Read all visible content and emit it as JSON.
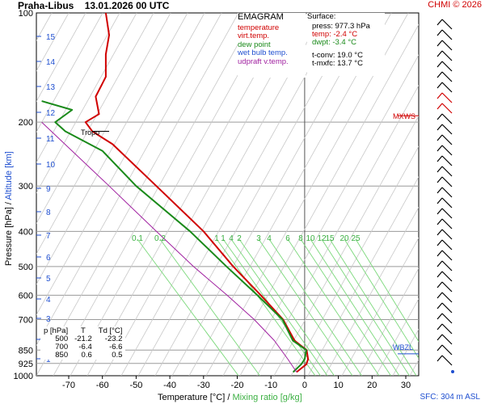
{
  "header": {
    "station": "Praha-Libus",
    "datetime": "13.01.2026 00 UTC",
    "copyright": "CHMI © 2026"
  },
  "legend": {
    "title": "EMAGRAM",
    "items": [
      {
        "label": "temperature",
        "color": "#d00000"
      },
      {
        "label": "virt.temp.",
        "color": "#d00000"
      },
      {
        "label": "dew point",
        "color": "#1a8a1a"
      },
      {
        "label": "wet bulb temp.",
        "color": "#1f4fd0"
      },
      {
        "label": "udpraft v.temp.",
        "color": "#a020a0"
      }
    ]
  },
  "surface": {
    "title": "Surface:",
    "press": "press: 977.3 hPa",
    "temp": "temp: -2.4 °C",
    "dwpt": "dwpt: -3.4 °C",
    "tconv": "t-conv: 19.0 °C",
    "tmxfc": "t-mxfc: 13.7 °C"
  },
  "table": {
    "headers": [
      "p [hPa]",
      "T",
      "Td [°C]"
    ],
    "rows": [
      [
        "500",
        "-21.2",
        "-23.2"
      ],
      [
        "700",
        "-6.4",
        "-6.6"
      ],
      [
        "850",
        "0.6",
        "0.5"
      ]
    ]
  },
  "labels": {
    "tropo": "Tropo",
    "mxws": "MXWS",
    "wbzl": "WBZL",
    "x_label_temp": "Temperature [°C]  /  ",
    "x_label_mix": "Mixing ratio [g/kg]",
    "y_label_press": "Pressure [hPa]  /  ",
    "y_label_alt": "Altitude [km]",
    "sfc": "SFC: 304 m ASL"
  },
  "chart_data": {
    "type": "line",
    "x_ticks": [
      -70,
      -60,
      -50,
      -40,
      -30,
      -20,
      -10,
      0,
      10,
      20,
      30
    ],
    "pressure_ticks": [
      100,
      200,
      300,
      400,
      500,
      600,
      700,
      850,
      925,
      1000
    ],
    "altitude_ticks": [
      1,
      2,
      3,
      4,
      5,
      6,
      7,
      8,
      9,
      10,
      11,
      12,
      13,
      14,
      15
    ],
    "mixing_ratio_labels": [
      "0.1",
      "0.2",
      "1",
      "1",
      "4",
      "2",
      "3",
      "4",
      "6",
      "8",
      "10",
      "12",
      "15",
      "20",
      "25"
    ],
    "xlim": [
      -80,
      30
    ],
    "ylim_hpa": [
      1000,
      100
    ],
    "series": [
      {
        "name": "temperature",
        "color": "#d00000",
        "points": [
          [
            -2.4,
            977
          ],
          [
            0.5,
            930
          ],
          [
            1.0,
            900
          ],
          [
            0.6,
            850
          ],
          [
            -3.0,
            800
          ],
          [
            -6.4,
            700
          ],
          [
            -13,
            600
          ],
          [
            -21.2,
            500
          ],
          [
            -30,
            400
          ],
          [
            -44,
            300
          ],
          [
            -57,
            230
          ],
          [
            -63,
            212
          ],
          [
            -65,
            200
          ],
          [
            -61,
            190
          ],
          [
            -62,
            170
          ],
          [
            -59,
            150
          ],
          [
            -59,
            130
          ],
          [
            -58,
            115
          ],
          [
            -59,
            100
          ]
        ]
      },
      {
        "name": "dew point",
        "color": "#1a8a1a",
        "points": [
          [
            -3.4,
            977
          ],
          [
            -1,
            930
          ],
          [
            0,
            900
          ],
          [
            0.5,
            850
          ],
          [
            -3.5,
            800
          ],
          [
            -6.6,
            700
          ],
          [
            -14,
            600
          ],
          [
            -23.2,
            500
          ],
          [
            -34,
            400
          ],
          [
            -50,
            300
          ],
          [
            -60,
            240
          ],
          [
            -71,
            212
          ],
          [
            -74,
            200
          ],
          [
            -69,
            185
          ],
          [
            -78,
            175
          ]
        ]
      },
      {
        "name": "udpraft v.temp.",
        "color": "#a020a0",
        "points": [
          [
            -2.4,
            977
          ],
          [
            -5,
            900
          ],
          [
            -9,
            800
          ],
          [
            -15,
            700
          ],
          [
            -23,
            600
          ],
          [
            -33,
            500
          ],
          [
            -44,
            400
          ],
          [
            -58,
            300
          ],
          [
            -78,
            200
          ]
        ]
      }
    ],
    "grid": true
  }
}
